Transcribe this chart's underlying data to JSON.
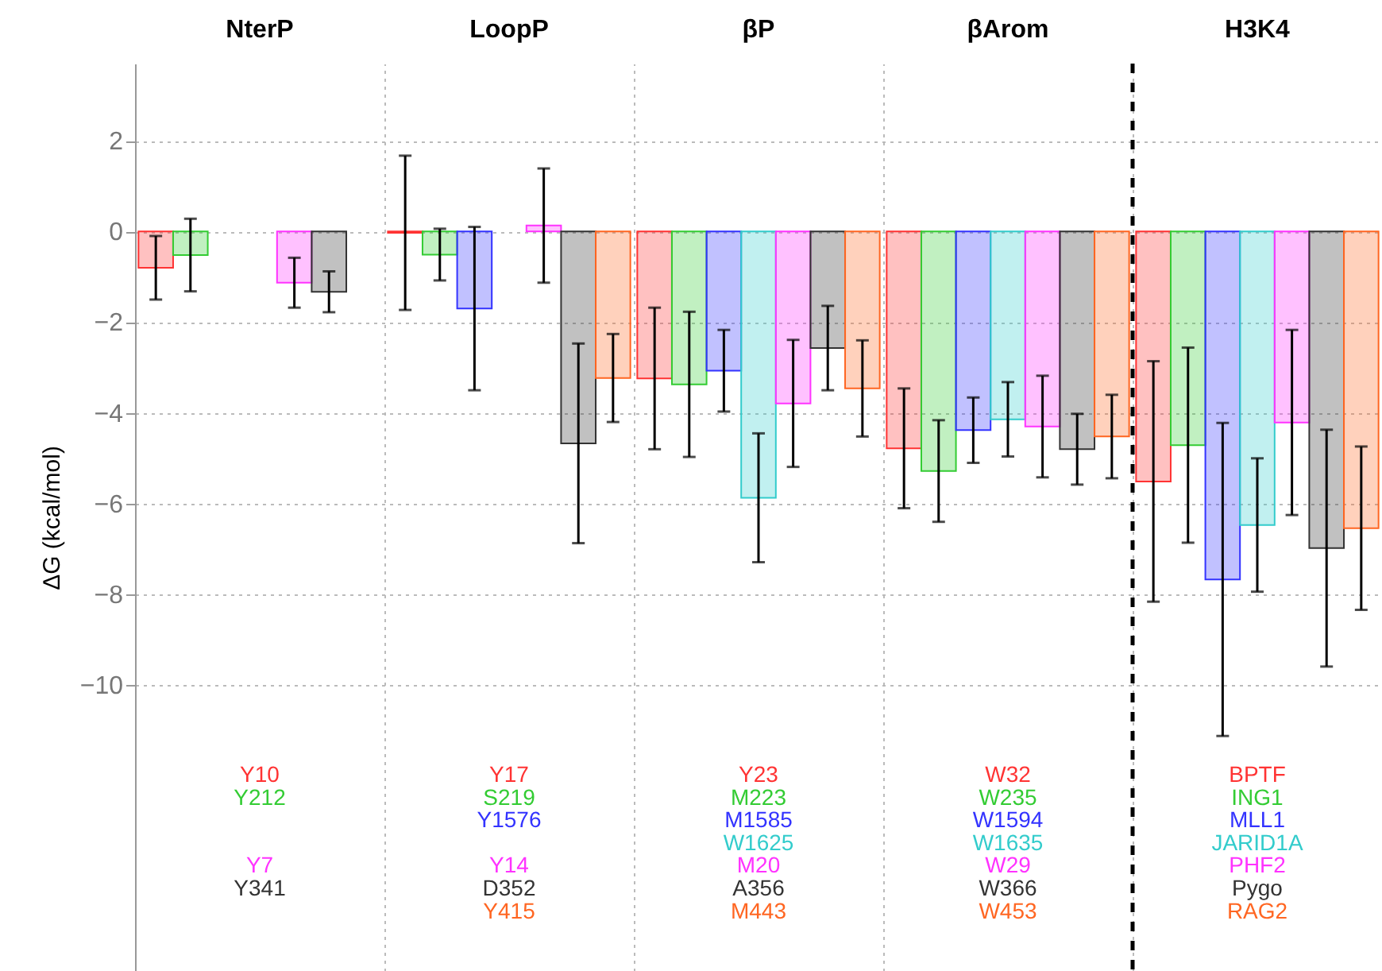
{
  "chart_data": {
    "type": "bar",
    "ylabel": "ΔG (kcal/mol)",
    "categories": [
      "NterP",
      "LoopP",
      "βP",
      "βArom",
      "H3K4"
    ],
    "series": [
      {
        "color": "#ff3333",
        "values": [
          -0.8,
          -0.03,
          -3.24,
          -4.78,
          -5.51
        ],
        "errors": [
          0.7,
          1.7,
          1.56,
          1.32,
          2.65
        ]
      },
      {
        "color": "#33cc33",
        "values": [
          -0.52,
          -0.51,
          -3.37,
          -5.28,
          -4.71
        ],
        "errors": [
          0.8,
          0.57,
          1.6,
          1.12,
          2.15
        ]
      },
      {
        "color": "#3333ff",
        "values": [
          null,
          -1.7,
          -3.07,
          -4.38,
          -7.67
        ],
        "errors": [
          null,
          1.8,
          0.9,
          0.72,
          3.45
        ]
      },
      {
        "color": "#33cccc",
        "values": [
          null,
          null,
          -5.87,
          -4.14,
          -6.47
        ],
        "errors": [
          null,
          null,
          1.42,
          0.82,
          1.47
        ]
      },
      {
        "color": "#ff33ff",
        "values": [
          -1.13,
          0.13,
          -3.79,
          -4.3,
          -4.21
        ],
        "errors": [
          0.55,
          1.26,
          1.4,
          1.12,
          2.04
        ]
      },
      {
        "color": "#333333",
        "values": [
          -1.33,
          -4.67,
          -2.57,
          -4.8,
          -6.98
        ],
        "errors": [
          0.45,
          2.2,
          0.93,
          0.78,
          2.61
        ]
      },
      {
        "color": "#ff6622",
        "values": [
          null,
          -3.23,
          -3.46,
          -4.52,
          -6.54
        ],
        "errors": [
          null,
          0.97,
          1.06,
          0.92,
          1.8
        ]
      }
    ],
    "ylim": [
      -16.3,
      3.7
    ],
    "yticks": [
      -10,
      -8,
      -6,
      -4,
      -2,
      0,
      2
    ],
    "grid": true,
    "ref_lines": [
      {
        "axis": "x",
        "value": "H3K4",
        "color": "#000000",
        "line_style": "dashed"
      }
    ],
    "annotations": [
      "Y10\nY212\n\n\nY7\nY341\n",
      "Y17\nS219\nY1576\n\nY14\nD352\nY415",
      "Y23\nM223\nM1585\nW1625\nM20\nA356\nM443",
      "W32\nW235\nW1594\nW1635\nW29\nW366\nW453",
      "BPTF\nING1\nMLL1\nJARID1A\nPHF2\nPygo\nRAG2"
    ]
  }
}
